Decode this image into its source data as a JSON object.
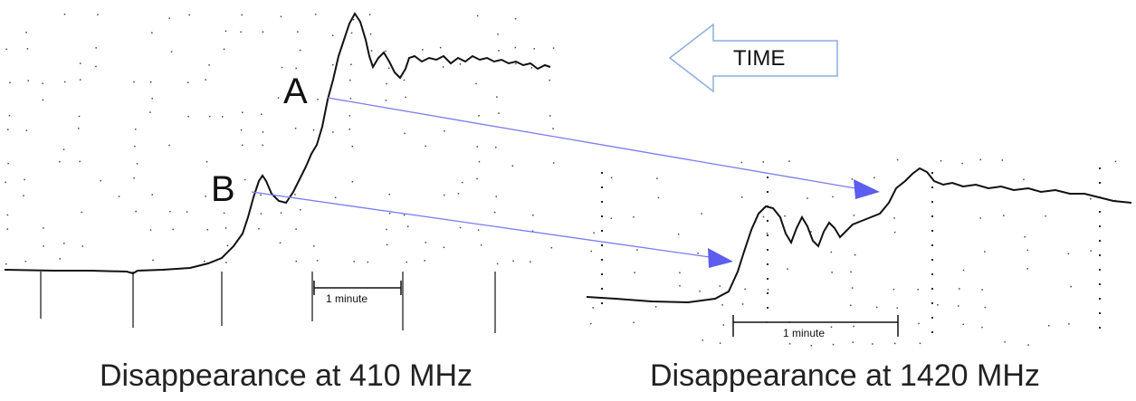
{
  "panels": [
    {
      "caption": "Disappearance at 410 MHz",
      "scale_label": "1 minute",
      "points": [
        {
          "label": "A"
        },
        {
          "label": "B"
        }
      ]
    },
    {
      "caption": "Disappearance at 1420 MHz",
      "scale_label": "1 minute"
    }
  ],
  "time_arrow": {
    "label": "TIME"
  },
  "colors": {
    "arrow": "#7b7bf0",
    "arrow_head": "#5d5df0",
    "trace": "#111111",
    "time_arrow_stroke": "#8aaee0"
  }
}
